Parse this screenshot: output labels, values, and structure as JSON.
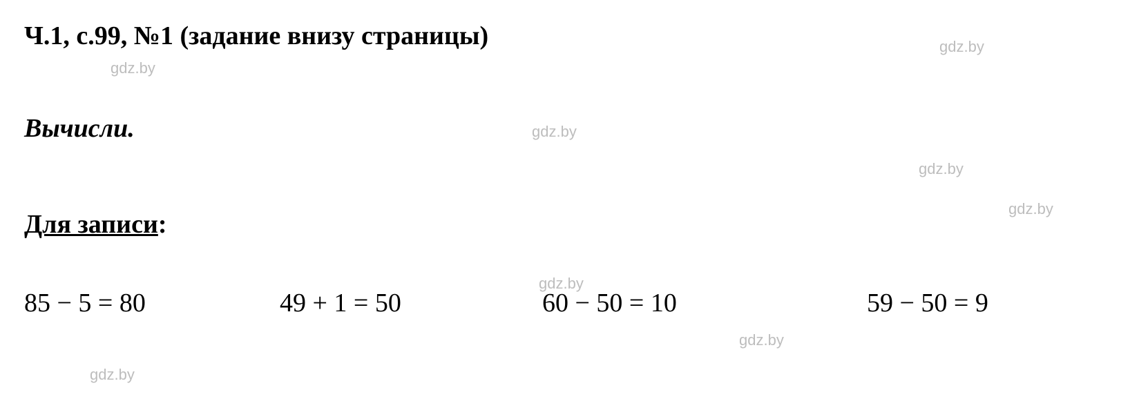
{
  "header": "Ч.1, с.99, №1 (задание внизу страницы)",
  "instruction": "Вычисли.",
  "label": {
    "underlined": "Для записи",
    "colon": ":"
  },
  "equations": {
    "eq1": "85 − 5 = 80",
    "eq2": "49 + 1 = 50",
    "eq3": "60 − 50 = 10",
    "eq4": "59 − 50 = 9"
  },
  "watermark": "gdz.by",
  "colors": {
    "text": "#000000",
    "background": "#ffffff",
    "watermark": "#bdbdbd"
  },
  "typography": {
    "main_font": "Times New Roman",
    "watermark_font": "Arial",
    "header_fontsize": 38,
    "equation_fontsize": 38,
    "watermark_fontsize": 22
  }
}
